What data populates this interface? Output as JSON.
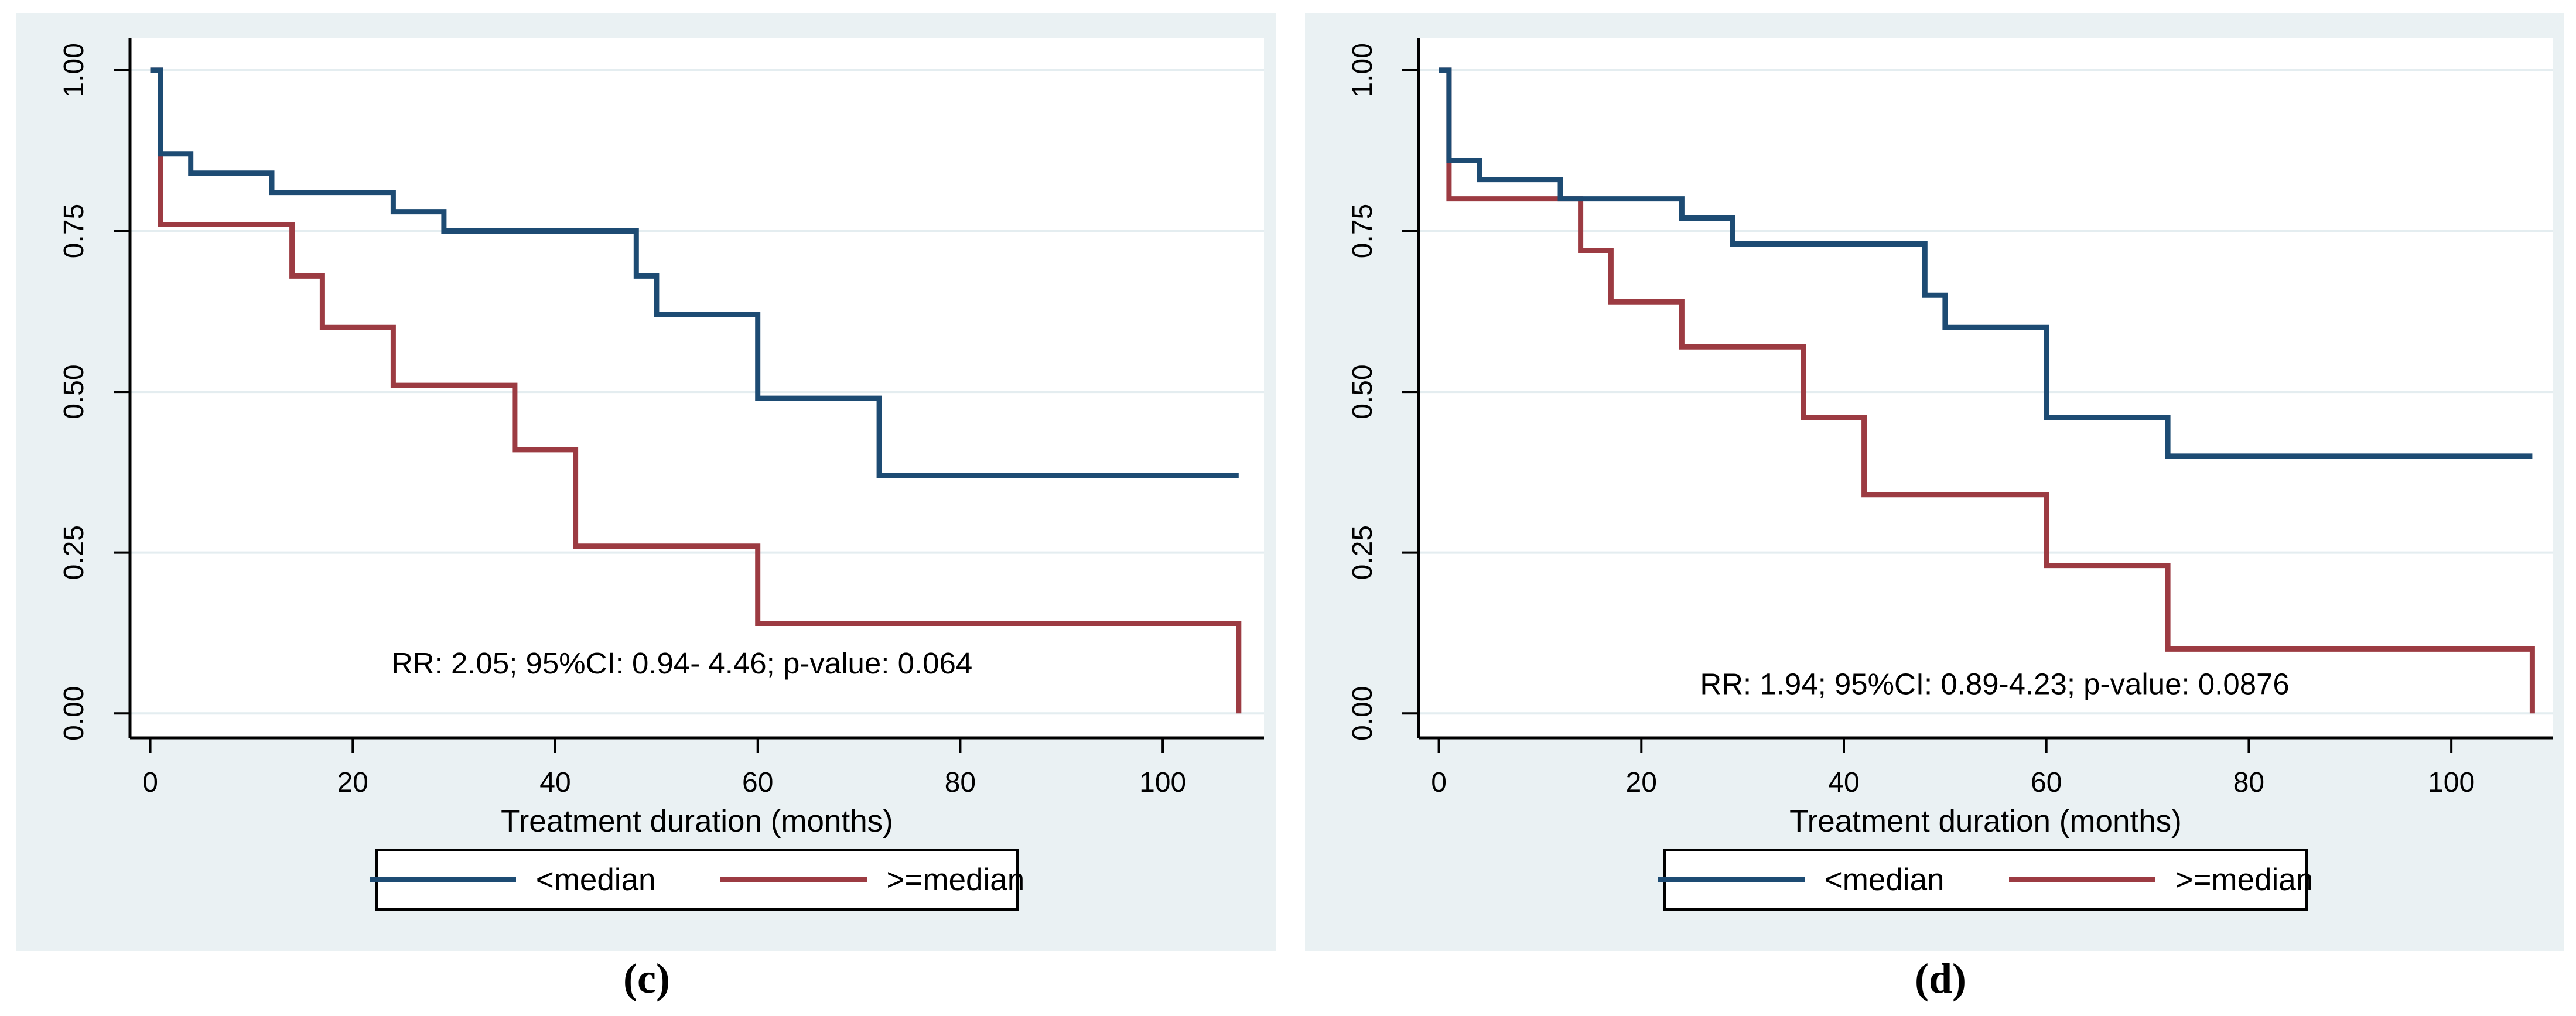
{
  "captions": [
    "(c)",
    "(d)"
  ],
  "colors": {
    "panel_background": "#eaf1f3",
    "plot_background": "#ffffff",
    "gridline": "#e4edf0",
    "axis": "#000000",
    "navy": "#1d4b73",
    "maroon": "#9c3b42"
  },
  "chart_data": [
    {
      "type": "line",
      "subtype": "kaplan-meier-step",
      "title": "",
      "xlabel": "Treatment duration (months)",
      "ylabel": "",
      "xlim": [
        -2,
        110
      ],
      "ylim": [
        -0.038,
        1.05
      ],
      "xticks": [
        0,
        20,
        40,
        60,
        80,
        100
      ],
      "yticks": {
        "values": [
          0,
          0.25,
          0.5,
          0.75,
          1
        ],
        "labels": [
          "0.00",
          "0.25",
          "0.50",
          "0.75",
          "1.00"
        ]
      },
      "grid": "horizontal",
      "legend_position": "bottom-center",
      "annotation": {
        "x": 52.5,
        "y": 0.062,
        "text": "RR: 2.05; 95%CI: 0.94- 4.46; p-value: 0.064"
      },
      "legend": {
        "entries": [
          "<median",
          ">=median"
        ]
      },
      "series": [
        {
          "name": ">=median",
          "color": "#9c3b42",
          "points": [
            [
              0,
              1.0
            ],
            [
              1,
              0.76
            ],
            [
              14,
              0.68
            ],
            [
              17,
              0.6
            ],
            [
              24,
              0.51
            ],
            [
              36,
              0.41
            ],
            [
              42,
              0.26
            ],
            [
              60,
              0.14
            ],
            [
              107.5,
              0.14
            ],
            [
              107.5,
              0.0
            ]
          ]
        },
        {
          "name": "<median",
          "color": "#1d4b73",
          "points": [
            [
              0,
              1.0
            ],
            [
              1,
              0.87
            ],
            [
              4,
              0.84
            ],
            [
              12,
              0.81
            ],
            [
              24,
              0.78
            ],
            [
              29,
              0.75
            ],
            [
              48,
              0.68
            ],
            [
              50,
              0.62
            ],
            [
              60,
              0.49
            ],
            [
              72,
              0.37
            ],
            [
              107.5,
              0.37
            ]
          ]
        }
      ]
    },
    {
      "type": "line",
      "subtype": "kaplan-meier-step",
      "title": "",
      "xlabel": "Treatment duration (months)",
      "ylabel": "",
      "xlim": [
        -2,
        110
      ],
      "ylim": [
        -0.038,
        1.05
      ],
      "xticks": [
        0,
        20,
        40,
        60,
        80,
        100
      ],
      "yticks": {
        "values": [
          0,
          0.25,
          0.5,
          0.75,
          1
        ],
        "labels": [
          "0.00",
          "0.25",
          "0.50",
          "0.75",
          "1.00"
        ]
      },
      "grid": "horizontal",
      "legend_position": "bottom-center",
      "annotation": {
        "x": 54.9,
        "y": 0.03,
        "text": "RR: 1.94; 95%CI: 0.89-4.23; p-value: 0.0876"
      },
      "legend": {
        "entries": [
          "<median",
          ">=median"
        ]
      },
      "series": [
        {
          "name": ">=median",
          "color": "#9c3b42",
          "points": [
            [
              0,
              1.0
            ],
            [
              1,
              0.8
            ],
            [
              14,
              0.72
            ],
            [
              17,
              0.64
            ],
            [
              24,
              0.57
            ],
            [
              36,
              0.46
            ],
            [
              42,
              0.34
            ],
            [
              60,
              0.23
            ],
            [
              72,
              0.1
            ],
            [
              108,
              0.1
            ],
            [
              108,
              0.0
            ]
          ]
        },
        {
          "name": "<median",
          "color": "#1d4b73",
          "points": [
            [
              0,
              1.0
            ],
            [
              1,
              0.86
            ],
            [
              4,
              0.83
            ],
            [
              12,
              0.8
            ],
            [
              24,
              0.77
            ],
            [
              29,
              0.73
            ],
            [
              48,
              0.65
            ],
            [
              50,
              0.6
            ],
            [
              60,
              0.46
            ],
            [
              72,
              0.4
            ],
            [
              108,
              0.4
            ]
          ]
        }
      ]
    }
  ]
}
